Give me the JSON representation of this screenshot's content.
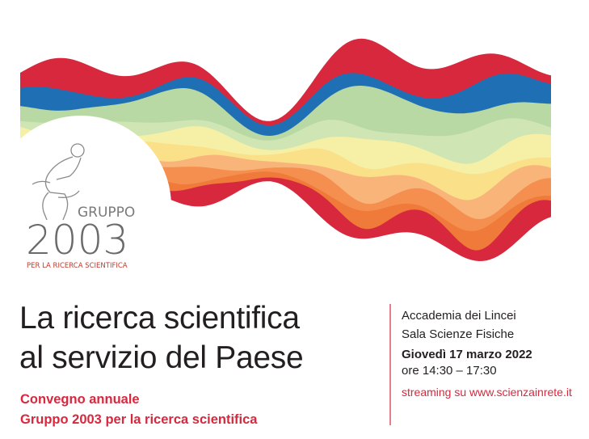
{
  "logo": {
    "name": "GRUPPO",
    "year": "2003",
    "tagline": "PER LA RICERCA SCIENTIFICA"
  },
  "title": [
    "La ricerca scientifica",
    "al servizio del Paese"
  ],
  "subtitle": [
    "Convegno annuale",
    "Gruppo 2003 per la ricerca scientifica"
  ],
  "event": {
    "venue": "Accademia dei Lincei",
    "room": "Sala Scienze Fisiche",
    "date": "Giovedì 17 marzo 2022",
    "time": "ore 14:30 – 17:30",
    "streaming": "streaming su www.scienzainrete.it"
  }
}
